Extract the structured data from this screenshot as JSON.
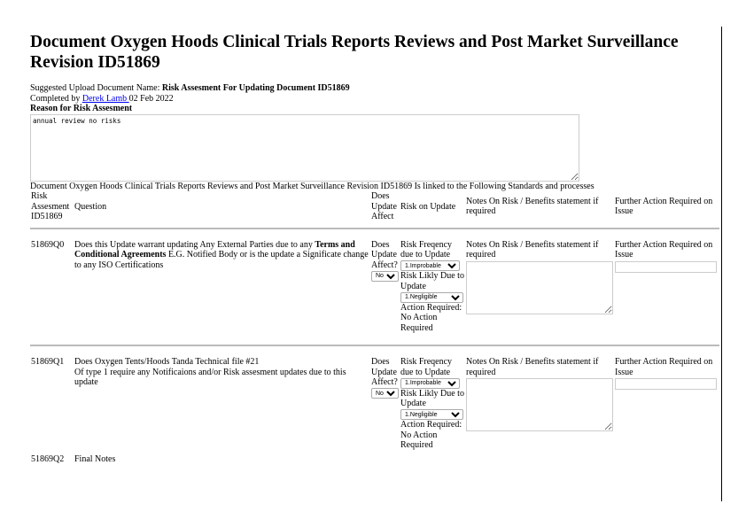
{
  "title": "Document Oxygen Hoods Clinical Trials Reports Reviews and Post Market Surveillance Revision ID51869",
  "upload": {
    "label": "Suggested Upload Document Name:",
    "value": "Risk Assesment For Updating Document ID51869"
  },
  "completed": {
    "label": "Completed by",
    "user": "Derek Lamb ",
    "date": "02 Feb 2022"
  },
  "reason": {
    "label": "Reason for Risk Assesment",
    "value": "annual review no risks"
  },
  "linked_text": "Document Oxygen Hoods Clinical Trials Reports Reviews and Post Market Surveillance Revision ID51869 Is linked to the Following Standards and processes",
  "headers": {
    "id": "Risk Assesment ID51869",
    "question": "Question",
    "affect": "Does Update Affect",
    "risk": "Risk on Update",
    "notes": "Notes On Risk / Benefits statement if required",
    "further": "Further Action Required on Issue"
  },
  "rows": [
    {
      "id": "51869Q0",
      "q_pre": "Does this Update warrant updating Any External Parties due to any ",
      "q_bold": "Terms and Conditional Agreements",
      "q_post": " E.G. Notified Body or is the update a Significate change to any ISO Certifications",
      "affect_label": "Does Update Affect?",
      "affect_value": "No",
      "freq_label": "Risk Freqency due to Update",
      "freq_value": "1.Improbable",
      "likely_label": "Risk Likly Due to Update",
      "likely_value": "1.Negligible",
      "action_label": "Action Required:",
      "action_value": "No Action Required",
      "notes_label": "Notes On Risk / Benefits statement if required",
      "further_label": "Further Action Required on Issue"
    },
    {
      "id": "51869Q1",
      "q_pre": "Does Oxygen Tents/Hoods Tanda Technical file #21",
      "q_line2": "Of type 1 require any Notificaions and/or Risk assesment updates due to this update",
      "affect_label": "Does Update Affect?",
      "affect_value": "No",
      "freq_label": "Risk Freqency due to Update",
      "freq_value": "1.Improbable",
      "likely_label": "Risk Likly Due to Update",
      "likely_value": "1.Negligible",
      "action_label": "Action Required:",
      "action_value": "No Action Required",
      "notes_label": "Notes On Risk / Benefits statement if required",
      "further_label": "Further Action Required on Issue"
    }
  ],
  "final": {
    "id": "51869Q2",
    "label": "Final Notes"
  }
}
